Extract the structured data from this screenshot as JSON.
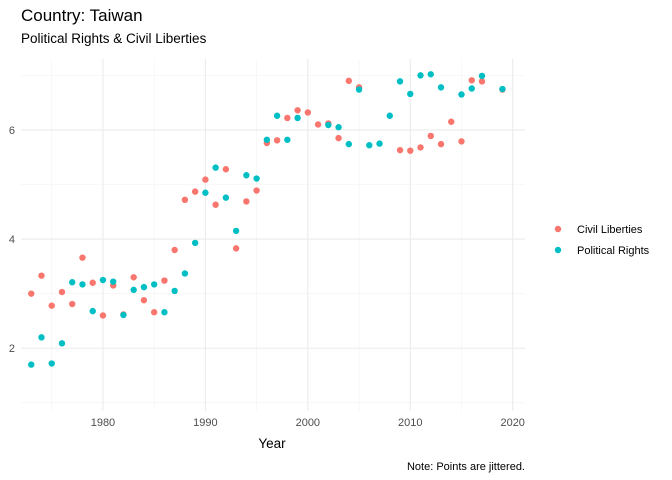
{
  "chart_data": {
    "type": "scatter",
    "title": "Country: Taiwan",
    "subtitle": "Political Rights & Civil Liberties",
    "xlabel": "Year",
    "ylabel": "",
    "caption": "Note: Points are jittered.",
    "xlim": [
      1972,
      2021.2
    ],
    "ylim": [
      0.85,
      7.3
    ],
    "x_ticks": [
      1980,
      1990,
      2000,
      2010,
      2020
    ],
    "y_ticks": [
      2,
      4,
      6
    ],
    "grid": true,
    "legend_position": "right",
    "series": [
      {
        "name": "Civil Liberties",
        "color": "#F8766D",
        "points": [
          [
            1973,
            3.0
          ],
          [
            1974,
            3.33
          ],
          [
            1975,
            2.78
          ],
          [
            1976,
            3.03
          ],
          [
            1977,
            2.81
          ],
          [
            1978,
            3.66
          ],
          [
            1979,
            3.2
          ],
          [
            1980,
            2.6
          ],
          [
            1981,
            3.15
          ],
          [
            1982,
            2.62
          ],
          [
            1983,
            3.3
          ],
          [
            1984,
            2.88
          ],
          [
            1985,
            2.66
          ],
          [
            1986,
            3.24
          ],
          [
            1987,
            3.8
          ],
          [
            1988,
            4.72
          ],
          [
            1989,
            4.87
          ],
          [
            1990,
            5.09
          ],
          [
            1991,
            4.63
          ],
          [
            1992,
            5.28
          ],
          [
            1993,
            3.83
          ],
          [
            1994,
            4.69
          ],
          [
            1995,
            4.89
          ],
          [
            1996,
            5.76
          ],
          [
            1997,
            5.81
          ],
          [
            1998,
            6.22
          ],
          [
            1999,
            6.36
          ],
          [
            2000,
            6.32
          ],
          [
            2001,
            6.1
          ],
          [
            2002,
            6.12
          ],
          [
            2003,
            5.85
          ],
          [
            2004,
            6.9
          ],
          [
            2005,
            6.78
          ],
          [
            2009,
            5.63
          ],
          [
            2010,
            5.62
          ],
          [
            2011,
            5.68
          ],
          [
            2012,
            5.89
          ],
          [
            2013,
            5.74
          ],
          [
            2014,
            6.15
          ],
          [
            2015,
            5.79
          ],
          [
            2016,
            6.91
          ],
          [
            2017,
            6.89
          ],
          [
            2019,
            6.74
          ]
        ]
      },
      {
        "name": "Political Rights",
        "color": "#00BFC4",
        "points": [
          [
            1973,
            1.7
          ],
          [
            1974,
            2.2
          ],
          [
            1975,
            1.72
          ],
          [
            1976,
            2.09
          ],
          [
            1977,
            3.21
          ],
          [
            1978,
            3.17
          ],
          [
            1979,
            2.68
          ],
          [
            1980,
            3.25
          ],
          [
            1981,
            3.22
          ],
          [
            1982,
            2.61
          ],
          [
            1983,
            3.07
          ],
          [
            1984,
            3.12
          ],
          [
            1985,
            3.17
          ],
          [
            1986,
            2.66
          ],
          [
            1987,
            3.05
          ],
          [
            1988,
            3.37
          ],
          [
            1989,
            3.93
          ],
          [
            1990,
            4.85
          ],
          [
            1991,
            5.31
          ],
          [
            1992,
            4.76
          ],
          [
            1993,
            4.15
          ],
          [
            1994,
            5.17
          ],
          [
            1995,
            5.11
          ],
          [
            1996,
            5.82
          ],
          [
            1997,
            6.26
          ],
          [
            1998,
            5.82
          ],
          [
            1999,
            6.22
          ],
          [
            2002,
            6.09
          ],
          [
            2003,
            6.05
          ],
          [
            2004,
            5.74
          ],
          [
            2005,
            6.74
          ],
          [
            2006,
            5.72
          ],
          [
            2007,
            5.75
          ],
          [
            2008,
            6.26
          ],
          [
            2009,
            6.89
          ],
          [
            2010,
            6.66
          ],
          [
            2011,
            7.0
          ],
          [
            2012,
            7.02
          ],
          [
            2013,
            6.78
          ],
          [
            2015,
            6.65
          ],
          [
            2016,
            6.76
          ],
          [
            2017,
            6.99
          ],
          [
            2019,
            6.75
          ]
        ]
      }
    ]
  }
}
